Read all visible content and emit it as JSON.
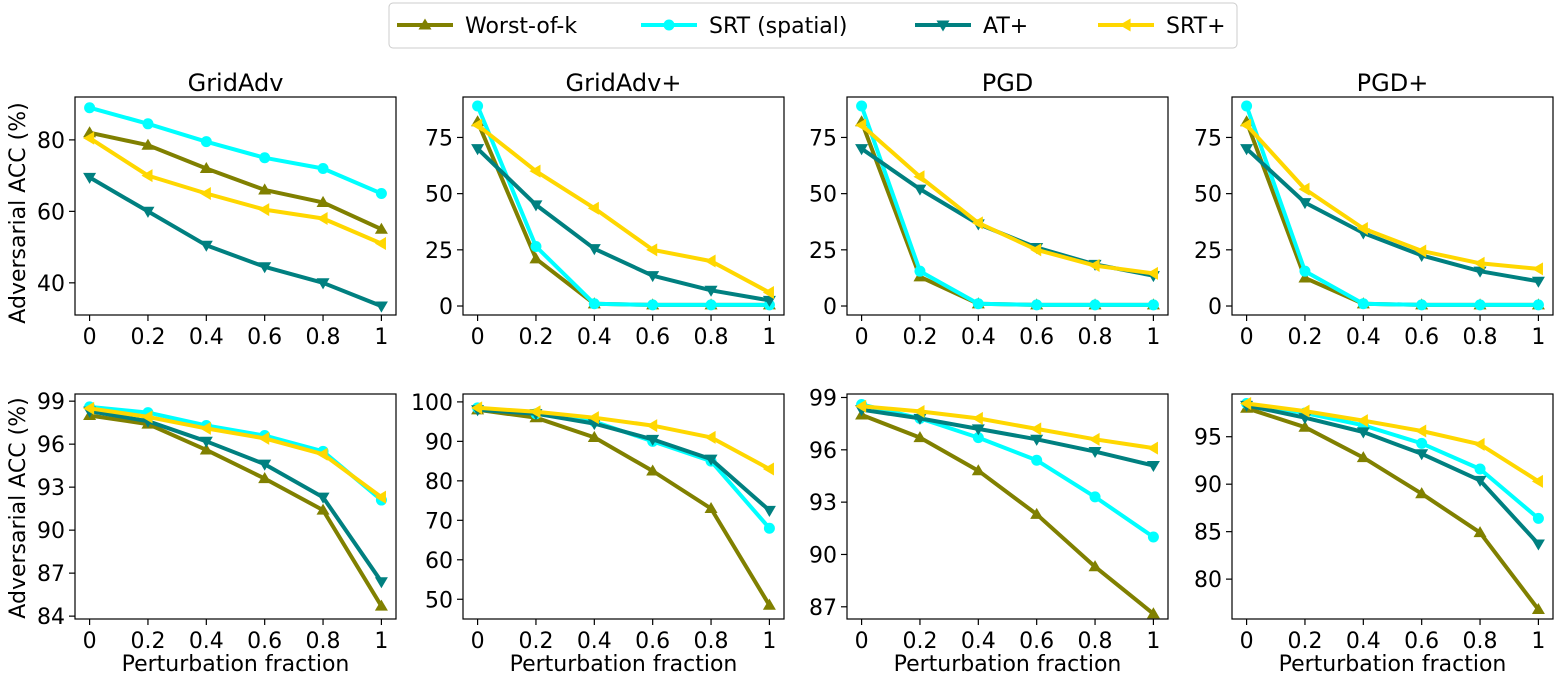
{
  "legend": {
    "location": "top-center",
    "entries": [
      {
        "name": "Worst-of-k",
        "color": "#808000",
        "marker": "triangle-up"
      },
      {
        "name": "SRT (spatial)",
        "color": "#00FFFF",
        "marker": "circle"
      },
      {
        "name": "AT+",
        "color": "#008080",
        "marker": "triangle-down"
      },
      {
        "name": "SRT+",
        "color": "#FFD700",
        "marker": "triangle-left"
      }
    ]
  },
  "row_ylabel": "Adversarial ACC (%)",
  "shared_xlabel": "Perturbation fraction",
  "chart_data": [
    {
      "type": "line",
      "title": "GridAdv",
      "row": 0,
      "col": 0,
      "x": [
        0,
        0.2,
        0.4,
        0.6,
        0.8,
        1
      ],
      "xticks": [
        "0",
        "0.2",
        "0.4",
        "0.6",
        "0.8",
        "1"
      ],
      "xlim": [
        -0.05,
        1.05
      ],
      "ylim": [
        31,
        92
      ],
      "yticks": [
        40,
        60,
        80
      ],
      "ylabel": "Adversarial ACC (%)",
      "xlabel": "",
      "series": [
        {
          "name": "Worst-of-k",
          "values": [
            82,
            78.5,
            72,
            66,
            62.5,
            55
          ]
        },
        {
          "name": "SRT (spatial)",
          "values": [
            89,
            84.5,
            79.5,
            75,
            72,
            65
          ]
        },
        {
          "name": "AT+",
          "values": [
            69.5,
            60,
            50.5,
            44.5,
            40,
            33.5
          ]
        },
        {
          "name": "SRT+",
          "values": [
            80.5,
            70,
            65,
            60.5,
            58,
            51
          ]
        }
      ]
    },
    {
      "type": "line",
      "title": "GridAdv+",
      "row": 0,
      "col": 1,
      "x": [
        0,
        0.2,
        0.4,
        0.6,
        0.8,
        1
      ],
      "xticks": [
        "0",
        "0.2",
        "0.4",
        "0.6",
        "0.8",
        "1"
      ],
      "xlim": [
        -0.05,
        1.05
      ],
      "ylim": [
        -4,
        93
      ],
      "yticks": [
        0,
        25,
        50,
        75
      ],
      "ylabel": "",
      "xlabel": "",
      "series": [
        {
          "name": "Worst-of-k",
          "values": [
            82,
            21,
            1,
            0.5,
            0.5,
            0.5
          ]
        },
        {
          "name": "SRT (spatial)",
          "values": [
            89,
            26.5,
            1,
            0.5,
            0.5,
            0.5
          ]
        },
        {
          "name": "AT+",
          "values": [
            70,
            45,
            25.5,
            13.5,
            7,
            2.5
          ]
        },
        {
          "name": "SRT+",
          "values": [
            80.5,
            60,
            43.5,
            25,
            20,
            6
          ]
        }
      ]
    },
    {
      "type": "line",
      "title": "PGD",
      "row": 0,
      "col": 2,
      "x": [
        0,
        0.2,
        0.4,
        0.6,
        0.8,
        1
      ],
      "xticks": [
        "0",
        "0.2",
        "0.4",
        "0.6",
        "0.8",
        "1"
      ],
      "xlim": [
        -0.05,
        1.05
      ],
      "ylim": [
        -4,
        93
      ],
      "yticks": [
        0,
        25,
        50,
        75
      ],
      "ylabel": "",
      "xlabel": "",
      "series": [
        {
          "name": "Worst-of-k",
          "values": [
            82,
            13,
            1,
            0.5,
            0.5,
            0.5
          ]
        },
        {
          "name": "SRT (spatial)",
          "values": [
            89,
            15.5,
            1,
            0.5,
            0.5,
            0.5
          ]
        },
        {
          "name": "AT+",
          "values": [
            70,
            52,
            36.5,
            26,
            18.5,
            13.5
          ]
        },
        {
          "name": "SRT+",
          "values": [
            80.5,
            57.5,
            37,
            25,
            18,
            14.5
          ]
        }
      ]
    },
    {
      "type": "line",
      "title": "PGD+",
      "row": 0,
      "col": 3,
      "x": [
        0,
        0.2,
        0.4,
        0.6,
        0.8,
        1
      ],
      "xticks": [
        "0",
        "0.2",
        "0.4",
        "0.6",
        "0.8",
        "1"
      ],
      "xlim": [
        -0.05,
        1.05
      ],
      "ylim": [
        -4,
        93
      ],
      "yticks": [
        0,
        25,
        50,
        75
      ],
      "ylabel": "",
      "xlabel": "",
      "series": [
        {
          "name": "Worst-of-k",
          "values": [
            82,
            12.5,
            1,
            0.5,
            0.5,
            0.5
          ]
        },
        {
          "name": "SRT (spatial)",
          "values": [
            89,
            15.5,
            1,
            0.5,
            0.5,
            0.5
          ]
        },
        {
          "name": "AT+",
          "values": [
            70,
            46,
            32.5,
            22.5,
            15.5,
            11
          ]
        },
        {
          "name": "SRT+",
          "values": [
            80.5,
            52,
            34.5,
            24.5,
            19,
            16.5
          ]
        }
      ]
    },
    {
      "type": "line",
      "title": "",
      "row": 1,
      "col": 0,
      "x": [
        0,
        0.2,
        0.4,
        0.6,
        0.8,
        1
      ],
      "xticks": [
        "0",
        "0.2",
        "0.4",
        "0.6",
        "0.8",
        "1"
      ],
      "xlim": [
        -0.05,
        1.05
      ],
      "ylim": [
        83.8,
        99.5
      ],
      "yticks": [
        84,
        87,
        90,
        93,
        96,
        99
      ],
      "ylabel": "Adversarial ACC (%)",
      "xlabel": "Perturbation fraction",
      "series": [
        {
          "name": "Worst-of-k",
          "values": [
            98,
            97.4,
            95.6,
            93.6,
            91.4,
            84.7
          ]
        },
        {
          "name": "SRT (spatial)",
          "values": [
            98.6,
            98.2,
            97.3,
            96.6,
            95.5,
            92.1
          ]
        },
        {
          "name": "AT+",
          "values": [
            98.3,
            97.6,
            96.2,
            94.6,
            92.3,
            86.4
          ]
        },
        {
          "name": "SRT+",
          "values": [
            98.5,
            97.9,
            97.1,
            96.4,
            95.3,
            92.3
          ]
        }
      ]
    },
    {
      "type": "line",
      "title": "",
      "row": 1,
      "col": 1,
      "x": [
        0,
        0.2,
        0.4,
        0.6,
        0.8,
        1
      ],
      "xticks": [
        "0",
        "0.2",
        "0.4",
        "0.6",
        "0.8",
        "1"
      ],
      "xlim": [
        -0.05,
        1.05
      ],
      "ylim": [
        45,
        102
      ],
      "yticks": [
        50,
        60,
        70,
        80,
        90,
        100
      ],
      "ylabel": "",
      "xlabel": "Perturbation fraction",
      "series": [
        {
          "name": "Worst-of-k",
          "values": [
            98,
            96,
            91,
            82.5,
            73,
            48.5
          ]
        },
        {
          "name": "SRT (spatial)",
          "values": [
            98.5,
            97,
            95,
            90,
            85,
            68
          ]
        },
        {
          "name": "AT+",
          "values": [
            98,
            97,
            94.5,
            90.5,
            85.5,
            72.5
          ]
        },
        {
          "name": "SRT+",
          "values": [
            98.5,
            97.5,
            96,
            94,
            91,
            83
          ]
        }
      ]
    },
    {
      "type": "line",
      "title": "",
      "row": 1,
      "col": 2,
      "x": [
        0,
        0.2,
        0.4,
        0.6,
        0.8,
        1
      ],
      "xticks": [
        "0",
        "0.2",
        "0.4",
        "0.6",
        "0.8",
        "1"
      ],
      "xlim": [
        -0.05,
        1.05
      ],
      "ylim": [
        86.3,
        99.2
      ],
      "yticks": [
        87,
        90,
        93,
        96,
        99
      ],
      "ylabel": "",
      "xlabel": "Perturbation fraction",
      "series": [
        {
          "name": "Worst-of-k",
          "values": [
            98,
            96.7,
            94.8,
            92.3,
            89.3,
            86.6
          ]
        },
        {
          "name": "SRT (spatial)",
          "values": [
            98.6,
            97.8,
            96.7,
            95.4,
            93.3,
            91
          ]
        },
        {
          "name": "AT+",
          "values": [
            98.3,
            97.8,
            97.2,
            96.6,
            95.9,
            95.1
          ]
        },
        {
          "name": "SRT+",
          "values": [
            98.5,
            98.2,
            97.8,
            97.2,
            96.6,
            96.1
          ]
        }
      ]
    },
    {
      "type": "line",
      "title": "",
      "row": 1,
      "col": 3,
      "x": [
        0,
        0.2,
        0.4,
        0.6,
        0.8,
        1
      ],
      "xticks": [
        "0",
        "0.2",
        "0.4",
        "0.6",
        "0.8",
        "1"
      ],
      "xlim": [
        -0.05,
        1.05
      ],
      "ylim": [
        75.8,
        99.5
      ],
      "yticks": [
        80,
        85,
        90,
        95
      ],
      "ylabel": "",
      "xlabel": "Perturbation fraction",
      "series": [
        {
          "name": "Worst-of-k",
          "values": [
            98,
            96,
            92.8,
            89,
            84.9,
            76.8
          ]
        },
        {
          "name": "SRT (spatial)",
          "values": [
            98.5,
            97.5,
            96.2,
            94.3,
            91.6,
            86.4
          ]
        },
        {
          "name": "AT+",
          "values": [
            98.3,
            97,
            95.5,
            93.2,
            90.4,
            83.7
          ]
        },
        {
          "name": "SRT+",
          "values": [
            98.5,
            97.7,
            96.7,
            95.6,
            94.2,
            90.3
          ]
        }
      ]
    }
  ]
}
